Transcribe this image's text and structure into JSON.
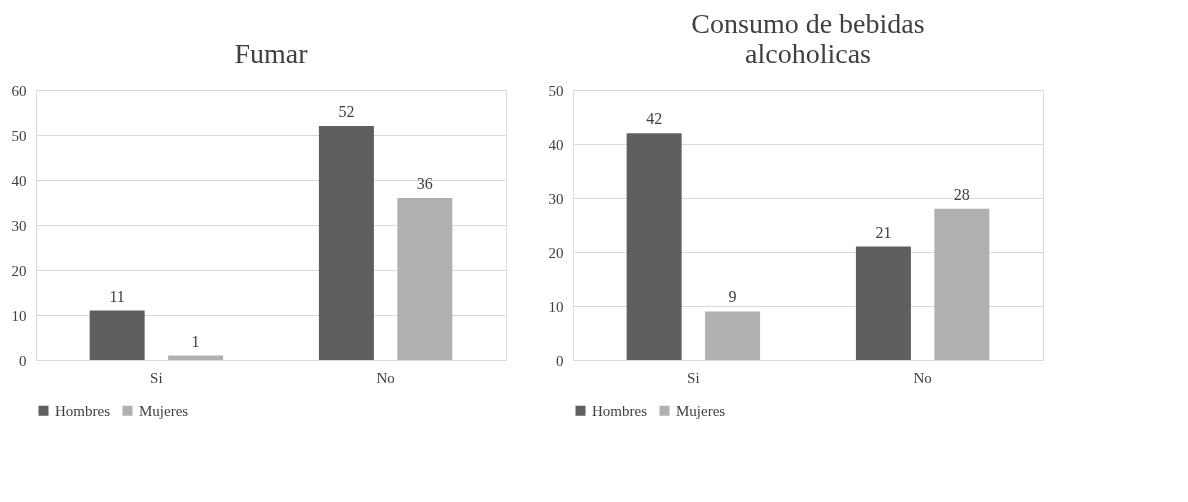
{
  "chart_data": [
    {
      "type": "bar",
      "title": "Fumar",
      "categories": [
        "Si",
        "No"
      ],
      "series": [
        {
          "name": "Hombres",
          "color": "#5f5f5f",
          "values": [
            11,
            52
          ]
        },
        {
          "name": "Mujeres",
          "color": "#b0b0b0",
          "values": [
            1,
            36
          ]
        }
      ],
      "ylim": [
        0,
        60
      ],
      "yticks": [
        0,
        10,
        20,
        30,
        40,
        50,
        60
      ],
      "grid": "y",
      "legend": "bottom",
      "data_labels": true
    },
    {
      "type": "bar",
      "title": "Consumo de bebidas alcoholicas",
      "categories": [
        "Si",
        "No"
      ],
      "series": [
        {
          "name": "Hombres",
          "color": "#5f5f5f",
          "values": [
            42,
            21
          ]
        },
        {
          "name": "Mujeres",
          "color": "#b0b0b0",
          "values": [
            9,
            28
          ]
        }
      ],
      "ylim": [
        0,
        50
      ],
      "yticks": [
        0,
        10,
        20,
        30,
        40,
        50
      ],
      "grid": "y",
      "legend": "bottom",
      "data_labels": true
    }
  ]
}
